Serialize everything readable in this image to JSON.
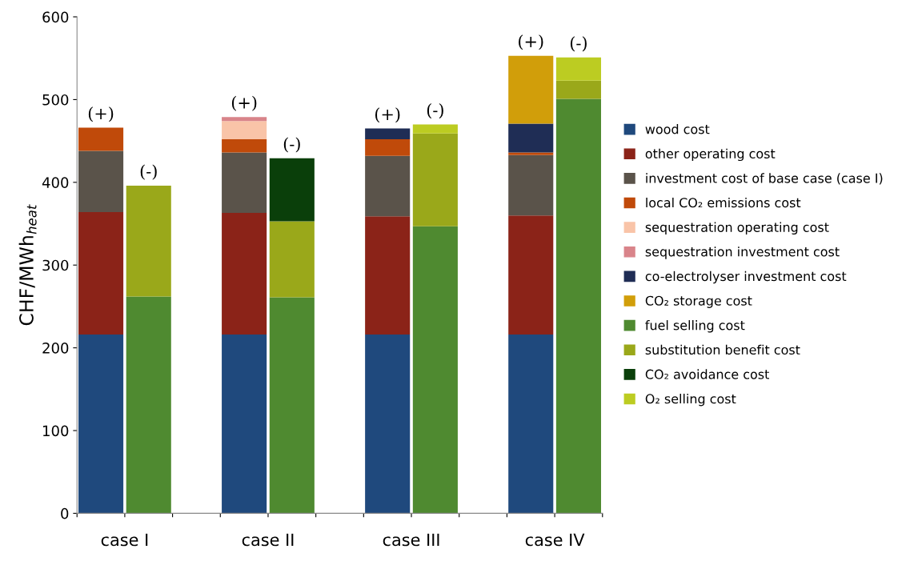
{
  "chart_data": {
    "type": "bar",
    "stacked": true,
    "ylabel": "CHF/MWh$_{heat}$",
    "categories": [
      null,
      null,
      null,
      null,
      null,
      null,
      null,
      null,
      null,
      null,
      null
    ],
    "totals": [
      "(+)",
      "(-)",
      null,
      "(+)",
      "(-)",
      null,
      "(+)",
      "(-)",
      null,
      "(+)",
      "(-)"
    ],
    "annotations": [
      "case I",
      "case II",
      "case III",
      "case IV"
    ],
    "ylim": [
      0,
      600
    ],
    "yticks": [
      0,
      100,
      200,
      300,
      400,
      500,
      600
    ],
    "grid": false,
    "legend": "right",
    "series": [
      {
        "name": "wood cost",
        "color": "#1f497d",
        "values": [
          216,
          null,
          null,
          216,
          null,
          null,
          216,
          null,
          null,
          216,
          null
        ]
      },
      {
        "name": "other operating cost",
        "color": "#8b2318",
        "values": [
          148,
          null,
          null,
          147,
          null,
          null,
          143,
          null,
          null,
          144,
          null
        ]
      },
      {
        "name": "investment cost of base case (case I)",
        "color": "#5a534a",
        "values": [
          74,
          null,
          null,
          73,
          null,
          null,
          73,
          null,
          null,
          73,
          null
        ]
      },
      {
        "name": "local CO₂ emissions cost",
        "color": "#c04a0a",
        "values": [
          28,
          null,
          null,
          16,
          null,
          null,
          20,
          null,
          null,
          3,
          null
        ]
      },
      {
        "name": "sequestration operating cost",
        "color": "#f9c4a8",
        "values": [
          null,
          null,
          null,
          22,
          null,
          null,
          null,
          null,
          null,
          null,
          null
        ]
      },
      {
        "name": "sequestration investment cost",
        "color": "#d9848a",
        "values": [
          null,
          null,
          null,
          5,
          null,
          null,
          null,
          null,
          null,
          null,
          null
        ]
      },
      {
        "name": "co-electrolyser investment cost",
        "color": "#1f2d55",
        "values": [
          null,
          null,
          null,
          null,
          null,
          null,
          13,
          null,
          null,
          35,
          null
        ]
      },
      {
        "name": "CO₂ storage cost",
        "color": "#d19e0a",
        "values": [
          null,
          null,
          null,
          null,
          null,
          null,
          null,
          null,
          null,
          82,
          null
        ]
      },
      {
        "name": "fuel selling cost",
        "color": "#4f8a30",
        "values": [
          null,
          262,
          null,
          null,
          261,
          null,
          null,
          347,
          null,
          null,
          501
        ]
      },
      {
        "name": "substitution benefit cost",
        "color": "#9aa81a",
        "values": [
          null,
          134,
          null,
          null,
          92,
          null,
          null,
          112,
          null,
          null,
          22
        ]
      },
      {
        "name": "CO₂ avoidance cost",
        "color": "#0a3f0a",
        "values": [
          null,
          null,
          null,
          null,
          76,
          null,
          null,
          null,
          null,
          null,
          null
        ]
      },
      {
        "name": "O₂ selling cost",
        "color": "#bccc22",
        "values": [
          null,
          null,
          null,
          null,
          null,
          null,
          null,
          11,
          null,
          null,
          28
        ]
      }
    ]
  }
}
